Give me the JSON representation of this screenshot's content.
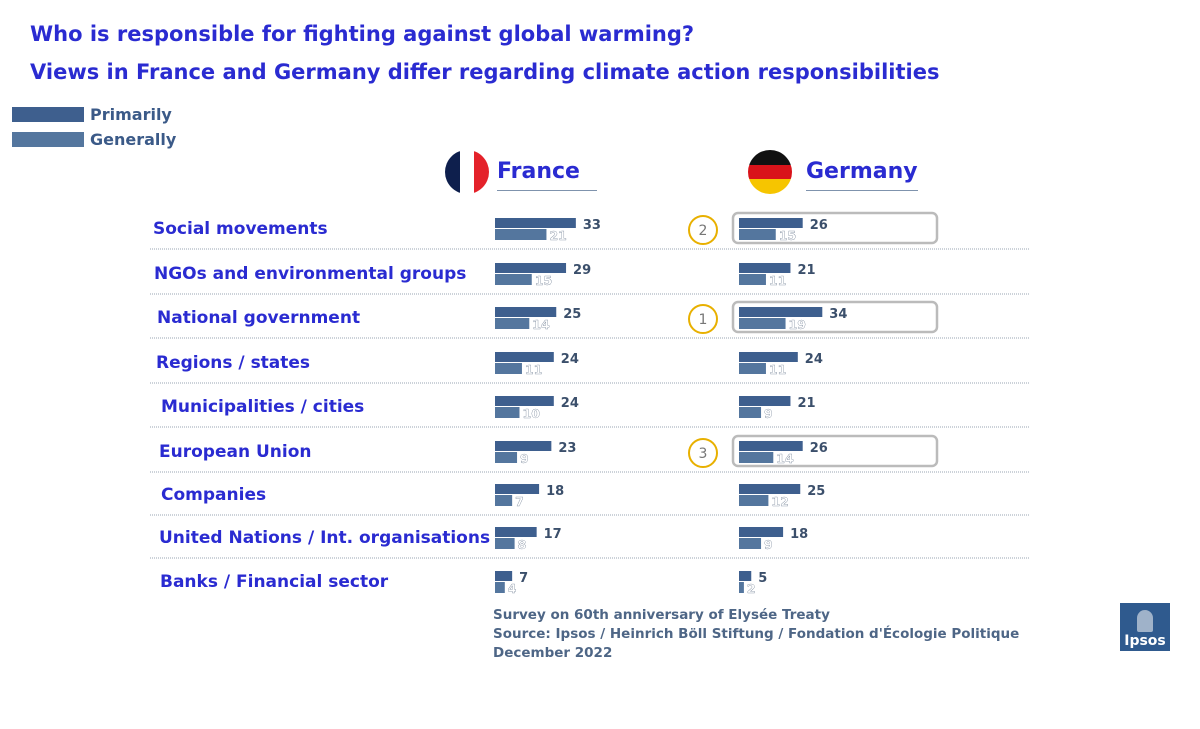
{
  "colors": {
    "primarily": "#3e5f8e",
    "generally": "#54769e",
    "title": "#2a2bd1",
    "label": "#2a2bd1",
    "callout": "#e8b000",
    "highlight_box": "#bbbbbb"
  },
  "legend": {
    "primarily": "Primarily",
    "generally": "Generally"
  },
  "footer": {
    "line1": "Survey on 60th anniversary of Elysée Treaty",
    "line2": "Source: Ipsos / Heinrich Böll Stiftung / Fondation d'Écologie Politique",
    "line3": "December 2022"
  },
  "logo": {
    "text": "Ipsos"
  },
  "chart_data": {
    "type": "bar",
    "title": "Who is responsible for fighting against global warming?",
    "subtitle": "Views in France and Germany differ regarding climate action responsibilities",
    "categories": [
      "Social movements",
      "NGOs and environmental groups",
      "National government",
      "Regions / states",
      "Municipalities / cities",
      "European Union",
      "Companies",
      "United Nations / Int. organisations",
      "Banks / Financial sector"
    ],
    "panels": [
      {
        "name": "France",
        "series": [
          {
            "name": "Primarily",
            "values": [
              33,
              29,
              25,
              24,
              24,
              23,
              18,
              17,
              7
            ]
          },
          {
            "name": "Generally",
            "values": [
              21,
              15,
              14,
              11,
              10,
              9,
              7,
              8,
              4
            ]
          }
        ]
      },
      {
        "name": "Germany",
        "series": [
          {
            "name": "Primarily",
            "values": [
              26,
              21,
              34,
              24,
              21,
              26,
              25,
              18,
              5
            ]
          },
          {
            "name": "Generally",
            "values": [
              15,
              11,
              19,
              11,
              9,
              14,
              12,
              9,
              2
            ]
          }
        ]
      }
    ],
    "rank_callouts": [
      {
        "panel": "Germany",
        "category": "Social movements",
        "rank": "2"
      },
      {
        "panel": "Germany",
        "category": "National government",
        "rank": "1"
      },
      {
        "panel": "Germany",
        "category": "European Union",
        "rank": "3"
      }
    ],
    "legend": "top-left"
  }
}
